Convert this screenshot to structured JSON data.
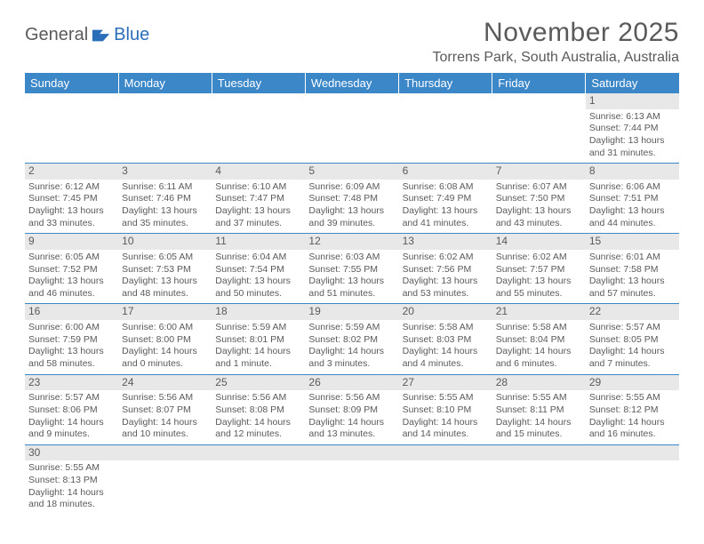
{
  "logo": {
    "part1": "General",
    "part2": "Blue"
  },
  "title": "November 2025",
  "location": "Torrens Park, South Australia, Australia",
  "columns": [
    "Sunday",
    "Monday",
    "Tuesday",
    "Wednesday",
    "Thursday",
    "Friday",
    "Saturday"
  ],
  "colors": {
    "header_bg": "#3b87c8",
    "header_text": "#ffffff",
    "daynum_bg": "#e8e8e8",
    "text": "#5a5a5a",
    "rule": "#3b87c8",
    "logo_blue": "#2a6db8"
  },
  "weeks": [
    [
      {
        "n": "",
        "lines": []
      },
      {
        "n": "",
        "lines": []
      },
      {
        "n": "",
        "lines": []
      },
      {
        "n": "",
        "lines": []
      },
      {
        "n": "",
        "lines": []
      },
      {
        "n": "",
        "lines": []
      },
      {
        "n": "1",
        "lines": [
          "Sunrise: 6:13 AM",
          "Sunset: 7:44 PM",
          "Daylight: 13 hours and 31 minutes."
        ]
      }
    ],
    [
      {
        "n": "2",
        "lines": [
          "Sunrise: 6:12 AM",
          "Sunset: 7:45 PM",
          "Daylight: 13 hours and 33 minutes."
        ]
      },
      {
        "n": "3",
        "lines": [
          "Sunrise: 6:11 AM",
          "Sunset: 7:46 PM",
          "Daylight: 13 hours and 35 minutes."
        ]
      },
      {
        "n": "4",
        "lines": [
          "Sunrise: 6:10 AM",
          "Sunset: 7:47 PM",
          "Daylight: 13 hours and 37 minutes."
        ]
      },
      {
        "n": "5",
        "lines": [
          "Sunrise: 6:09 AM",
          "Sunset: 7:48 PM",
          "Daylight: 13 hours and 39 minutes."
        ]
      },
      {
        "n": "6",
        "lines": [
          "Sunrise: 6:08 AM",
          "Sunset: 7:49 PM",
          "Daylight: 13 hours and 41 minutes."
        ]
      },
      {
        "n": "7",
        "lines": [
          "Sunrise: 6:07 AM",
          "Sunset: 7:50 PM",
          "Daylight: 13 hours and 43 minutes."
        ]
      },
      {
        "n": "8",
        "lines": [
          "Sunrise: 6:06 AM",
          "Sunset: 7:51 PM",
          "Daylight: 13 hours and 44 minutes."
        ]
      }
    ],
    [
      {
        "n": "9",
        "lines": [
          "Sunrise: 6:05 AM",
          "Sunset: 7:52 PM",
          "Daylight: 13 hours and 46 minutes."
        ]
      },
      {
        "n": "10",
        "lines": [
          "Sunrise: 6:05 AM",
          "Sunset: 7:53 PM",
          "Daylight: 13 hours and 48 minutes."
        ]
      },
      {
        "n": "11",
        "lines": [
          "Sunrise: 6:04 AM",
          "Sunset: 7:54 PM",
          "Daylight: 13 hours and 50 minutes."
        ]
      },
      {
        "n": "12",
        "lines": [
          "Sunrise: 6:03 AM",
          "Sunset: 7:55 PM",
          "Daylight: 13 hours and 51 minutes."
        ]
      },
      {
        "n": "13",
        "lines": [
          "Sunrise: 6:02 AM",
          "Sunset: 7:56 PM",
          "Daylight: 13 hours and 53 minutes."
        ]
      },
      {
        "n": "14",
        "lines": [
          "Sunrise: 6:02 AM",
          "Sunset: 7:57 PM",
          "Daylight: 13 hours and 55 minutes."
        ]
      },
      {
        "n": "15",
        "lines": [
          "Sunrise: 6:01 AM",
          "Sunset: 7:58 PM",
          "Daylight: 13 hours and 57 minutes."
        ]
      }
    ],
    [
      {
        "n": "16",
        "lines": [
          "Sunrise: 6:00 AM",
          "Sunset: 7:59 PM",
          "Daylight: 13 hours and 58 minutes."
        ]
      },
      {
        "n": "17",
        "lines": [
          "Sunrise: 6:00 AM",
          "Sunset: 8:00 PM",
          "Daylight: 14 hours and 0 minutes."
        ]
      },
      {
        "n": "18",
        "lines": [
          "Sunrise: 5:59 AM",
          "Sunset: 8:01 PM",
          "Daylight: 14 hours and 1 minute."
        ]
      },
      {
        "n": "19",
        "lines": [
          "Sunrise: 5:59 AM",
          "Sunset: 8:02 PM",
          "Daylight: 14 hours and 3 minutes."
        ]
      },
      {
        "n": "20",
        "lines": [
          "Sunrise: 5:58 AM",
          "Sunset: 8:03 PM",
          "Daylight: 14 hours and 4 minutes."
        ]
      },
      {
        "n": "21",
        "lines": [
          "Sunrise: 5:58 AM",
          "Sunset: 8:04 PM",
          "Daylight: 14 hours and 6 minutes."
        ]
      },
      {
        "n": "22",
        "lines": [
          "Sunrise: 5:57 AM",
          "Sunset: 8:05 PM",
          "Daylight: 14 hours and 7 minutes."
        ]
      }
    ],
    [
      {
        "n": "23",
        "lines": [
          "Sunrise: 5:57 AM",
          "Sunset: 8:06 PM",
          "Daylight: 14 hours and 9 minutes."
        ]
      },
      {
        "n": "24",
        "lines": [
          "Sunrise: 5:56 AM",
          "Sunset: 8:07 PM",
          "Daylight: 14 hours and 10 minutes."
        ]
      },
      {
        "n": "25",
        "lines": [
          "Sunrise: 5:56 AM",
          "Sunset: 8:08 PM",
          "Daylight: 14 hours and 12 minutes."
        ]
      },
      {
        "n": "26",
        "lines": [
          "Sunrise: 5:56 AM",
          "Sunset: 8:09 PM",
          "Daylight: 14 hours and 13 minutes."
        ]
      },
      {
        "n": "27",
        "lines": [
          "Sunrise: 5:55 AM",
          "Sunset: 8:10 PM",
          "Daylight: 14 hours and 14 minutes."
        ]
      },
      {
        "n": "28",
        "lines": [
          "Sunrise: 5:55 AM",
          "Sunset: 8:11 PM",
          "Daylight: 14 hours and 15 minutes."
        ]
      },
      {
        "n": "29",
        "lines": [
          "Sunrise: 5:55 AM",
          "Sunset: 8:12 PM",
          "Daylight: 14 hours and 16 minutes."
        ]
      }
    ],
    [
      {
        "n": "30",
        "lines": [
          "Sunrise: 5:55 AM",
          "Sunset: 8:13 PM",
          "Daylight: 14 hours and 18 minutes."
        ]
      },
      {
        "n": "",
        "lines": []
      },
      {
        "n": "",
        "lines": []
      },
      {
        "n": "",
        "lines": []
      },
      {
        "n": "",
        "lines": []
      },
      {
        "n": "",
        "lines": []
      },
      {
        "n": "",
        "lines": []
      }
    ]
  ]
}
